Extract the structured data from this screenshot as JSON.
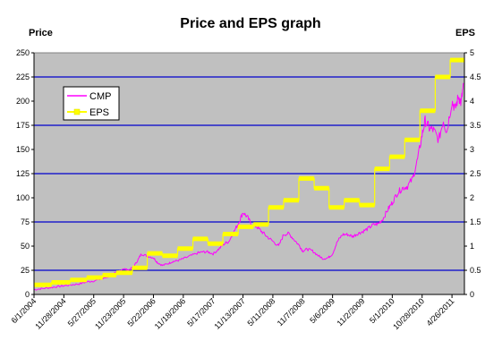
{
  "chart_data": {
    "type": "line",
    "title": "Price and EPS graph",
    "y_left_label": "Price",
    "y_right_label": "EPS",
    "y_left_ticks": [
      "0",
      "25",
      "50",
      "75",
      "100",
      "125",
      "150",
      "175",
      "200",
      "225",
      "250"
    ],
    "y_right_ticks": [
      "0",
      "0.5",
      "1",
      "1.5",
      "2",
      "2.5",
      "3",
      "3.5",
      "4",
      "4.5",
      "5"
    ],
    "ylim_left": [
      0,
      250
    ],
    "ylim_right": [
      0,
      5
    ],
    "x_tick_labels": [
      "6/1/2004",
      "11/28/2004",
      "5/27/2005",
      "11/23/2005",
      "5/22/2006",
      "11/18/2006",
      "5/17/2007",
      "11/13/2007",
      "5/11/2008",
      "11/7/2008",
      "5/6/2009",
      "11/2/2009",
      "5/1/2010",
      "10/28/2010",
      "4/26/2011"
    ],
    "x_tick_dates": [
      "2004-06-01",
      "2004-11-28",
      "2005-05-27",
      "2005-11-23",
      "2006-05-22",
      "2006-11-18",
      "2007-05-17",
      "2007-11-13",
      "2008-05-11",
      "2008-11-07",
      "2009-05-06",
      "2009-11-02",
      "2010-05-01",
      "2010-10-28",
      "2011-04-26"
    ],
    "x_range": [
      "2004-06-01",
      "2011-07-10"
    ],
    "legend_position": "upper-left",
    "gridlines": "major horizontal at 0.5 EPS intervals (blue)",
    "plot_background": "#c0c0c0",
    "series": [
      {
        "name": "CMP",
        "axis": "left",
        "color": "#ff00ff",
        "points": [
          [
            "2004-06-01",
            5
          ],
          [
            "2004-07-15",
            6
          ],
          [
            "2004-09-01",
            7
          ],
          [
            "2004-10-15",
            8
          ],
          [
            "2004-11-28",
            9
          ],
          [
            "2005-01-15",
            10
          ],
          [
            "2005-03-01",
            11
          ],
          [
            "2005-04-15",
            13
          ],
          [
            "2005-05-27",
            14
          ],
          [
            "2005-07-15",
            16
          ],
          [
            "2005-09-01",
            19
          ],
          [
            "2005-10-15",
            23
          ],
          [
            "2005-11-23",
            27
          ],
          [
            "2005-12-20",
            25
          ],
          [
            "2006-01-20",
            28
          ],
          [
            "2006-02-15",
            35
          ],
          [
            "2006-03-10",
            42
          ],
          [
            "2006-04-10",
            40
          ],
          [
            "2006-05-22",
            38
          ],
          [
            "2006-06-15",
            33
          ],
          [
            "2006-07-15",
            30
          ],
          [
            "2006-08-20",
            32
          ],
          [
            "2006-09-15",
            34
          ],
          [
            "2006-10-15",
            35
          ],
          [
            "2006-11-18",
            37
          ],
          [
            "2007-01-01",
            40
          ],
          [
            "2007-02-15",
            43
          ],
          [
            "2007-03-15",
            44
          ],
          [
            "2007-04-15",
            44
          ],
          [
            "2007-05-17",
            42
          ],
          [
            "2007-06-20",
            47
          ],
          [
            "2007-07-20",
            52
          ],
          [
            "2007-08-20",
            55
          ],
          [
            "2007-09-20",
            65
          ],
          [
            "2007-10-20",
            75
          ],
          [
            "2007-11-13",
            85
          ],
          [
            "2007-12-10",
            80
          ],
          [
            "2008-01-05",
            72
          ],
          [
            "2008-02-05",
            70
          ],
          [
            "2008-03-05",
            65
          ],
          [
            "2008-04-05",
            60
          ],
          [
            "2008-05-11",
            55
          ],
          [
            "2008-06-15",
            50
          ],
          [
            "2008-07-15",
            62
          ],
          [
            "2008-08-15",
            63
          ],
          [
            "2008-09-15",
            57
          ],
          [
            "2008-10-20",
            50
          ],
          [
            "2008-11-07",
            45
          ],
          [
            "2008-12-05",
            47
          ],
          [
            "2009-01-05",
            45
          ],
          [
            "2009-02-10",
            40
          ],
          [
            "2009-03-10",
            37
          ],
          [
            "2009-04-10",
            38
          ],
          [
            "2009-05-06",
            42
          ],
          [
            "2009-06-05",
            55
          ],
          [
            "2009-07-05",
            62
          ],
          [
            "2009-08-05",
            62
          ],
          [
            "2009-09-05",
            60
          ],
          [
            "2009-10-05",
            63
          ],
          [
            "2009-11-02",
            65
          ],
          [
            "2009-12-05",
            68
          ],
          [
            "2010-01-05",
            72
          ],
          [
            "2010-02-05",
            73
          ],
          [
            "2010-03-05",
            78
          ],
          [
            "2010-04-05",
            88
          ],
          [
            "2010-05-01",
            95
          ],
          [
            "2010-06-01",
            105
          ],
          [
            "2010-07-01",
            110
          ],
          [
            "2010-08-01",
            112
          ],
          [
            "2010-09-01",
            120
          ],
          [
            "2010-10-01",
            140
          ],
          [
            "2010-10-28",
            165
          ],
          [
            "2010-11-15",
            180
          ],
          [
            "2010-12-10",
            172
          ],
          [
            "2011-01-05",
            170
          ],
          [
            "2011-02-05",
            160
          ],
          [
            "2011-03-05",
            180
          ],
          [
            "2011-03-25",
            168
          ],
          [
            "2011-04-26",
            200
          ],
          [
            "2011-05-15",
            192
          ],
          [
            "2011-06-05",
            205
          ],
          [
            "2011-06-20",
            198
          ],
          [
            "2011-07-05",
            218
          ]
        ]
      },
      {
        "name": "EPS",
        "axis": "right",
        "color": "#ffff00",
        "steps": [
          [
            "2004-06-01",
            0.2
          ],
          [
            "2004-09-15",
            0.25
          ],
          [
            "2005-01-05",
            0.3
          ],
          [
            "2005-04-15",
            0.35
          ],
          [
            "2005-07-20",
            0.4
          ],
          [
            "2005-10-10",
            0.45
          ],
          [
            "2006-01-15",
            0.55
          ],
          [
            "2006-04-15",
            0.85
          ],
          [
            "2006-07-15",
            0.8
          ],
          [
            "2006-10-15",
            0.95
          ],
          [
            "2007-01-15",
            1.15
          ],
          [
            "2007-04-15",
            1.05
          ],
          [
            "2007-07-15",
            1.25
          ],
          [
            "2007-10-15",
            1.4
          ],
          [
            "2008-01-15",
            1.45
          ],
          [
            "2008-04-15",
            1.8
          ],
          [
            "2008-07-15",
            1.95
          ],
          [
            "2008-10-15",
            2.4
          ],
          [
            "2009-01-15",
            2.2
          ],
          [
            "2009-04-15",
            1.8
          ],
          [
            "2009-07-15",
            1.95
          ],
          [
            "2009-10-15",
            1.85
          ],
          [
            "2010-01-15",
            2.6
          ],
          [
            "2010-04-15",
            2.85
          ],
          [
            "2010-07-15",
            3.2
          ],
          [
            "2010-10-15",
            3.8
          ],
          [
            "2011-01-15",
            4.5
          ],
          [
            "2011-04-15",
            4.85
          ],
          [
            "2011-07-10",
            4.85
          ]
        ]
      }
    ]
  }
}
